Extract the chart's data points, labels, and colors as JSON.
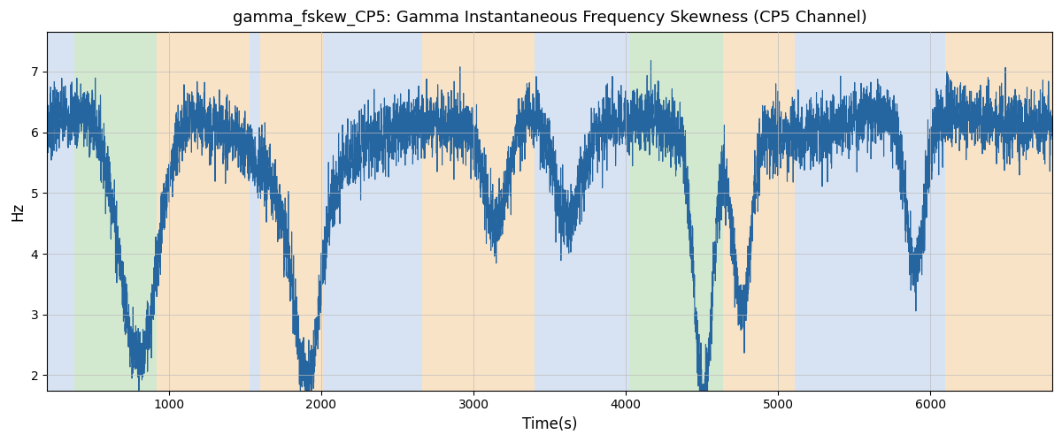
{
  "title": "gamma_fskew_CP5: Gamma Instantaneous Frequency Skewness (CP5 Channel)",
  "xlabel": "Time(s)",
  "ylabel": "Hz",
  "xlim": [
    200,
    6800
  ],
  "ylim": [
    1.75,
    7.65
  ],
  "yticks": [
    2,
    3,
    4,
    5,
    6,
    7
  ],
  "xticks": [
    1000,
    2000,
    3000,
    4000,
    5000,
    6000
  ],
  "line_color": "#2565a0",
  "line_width": 0.8,
  "grid_color": "#bbbbbb",
  "bands": [
    {
      "xmin": 200,
      "xmax": 380,
      "color": "#b0c8e8",
      "alpha": 0.5
    },
    {
      "xmin": 380,
      "xmax": 920,
      "color": "#a8d4a0",
      "alpha": 0.5
    },
    {
      "xmin": 920,
      "xmax": 1530,
      "color": "#f5c990",
      "alpha": 0.5
    },
    {
      "xmin": 1530,
      "xmax": 1600,
      "color": "#b0c8e8",
      "alpha": 0.5
    },
    {
      "xmin": 1600,
      "xmax": 2010,
      "color": "#f5c990",
      "alpha": 0.5
    },
    {
      "xmin": 2010,
      "xmax": 2660,
      "color": "#b0c8e8",
      "alpha": 0.5
    },
    {
      "xmin": 2660,
      "xmax": 3400,
      "color": "#f5c990",
      "alpha": 0.5
    },
    {
      "xmin": 3400,
      "xmax": 4020,
      "color": "#b0c8e8",
      "alpha": 0.5
    },
    {
      "xmin": 4020,
      "xmax": 4640,
      "color": "#a8d4a0",
      "alpha": 0.5
    },
    {
      "xmin": 4640,
      "xmax": 5110,
      "color": "#f5c990",
      "alpha": 0.5
    },
    {
      "xmin": 5110,
      "xmax": 6100,
      "color": "#b0c8e8",
      "alpha": 0.5
    },
    {
      "xmin": 6100,
      "xmax": 6800,
      "color": "#f5c990",
      "alpha": 0.5
    }
  ],
  "figsize": [
    12.0,
    5.0
  ],
  "dpi": 100
}
